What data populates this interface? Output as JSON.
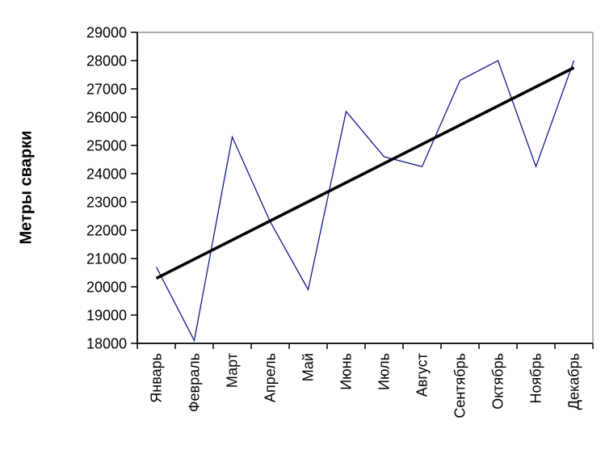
{
  "chart_data": {
    "type": "line",
    "title": "",
    "xlabel": "",
    "ylabel": "Метры сварки",
    "categories": [
      "Январь",
      "Февраль",
      "Март",
      "Апрель",
      "Май",
      "Июнь",
      "Июль",
      "Август",
      "Сентябрь",
      "Октябрь",
      "Ноябрь",
      "Декабрь"
    ],
    "series": [
      {
        "name": "Метры сварки",
        "values": [
          20700,
          18100,
          25300,
          22300,
          19900,
          26200,
          24600,
          24250,
          27300,
          28000,
          24250,
          28000
        ]
      }
    ],
    "trendline": {
      "shape": "linear",
      "start_value": 20300,
      "end_value": 27750
    },
    "ylim": [
      18000,
      29000
    ],
    "ytick_step": 1000,
    "y_tick_labels": [
      "18000",
      "19000",
      "20000",
      "21000",
      "22000",
      "23000",
      "24000",
      "25000",
      "26000",
      "27000",
      "28000",
      "29000"
    ],
    "grid": false,
    "legend_position": "none",
    "colors": {
      "series_line": "#16168a",
      "trend_line": "#000000",
      "axis": "#000000",
      "frame": "#808080",
      "background": "#ffffff",
      "text": "#000000"
    }
  }
}
